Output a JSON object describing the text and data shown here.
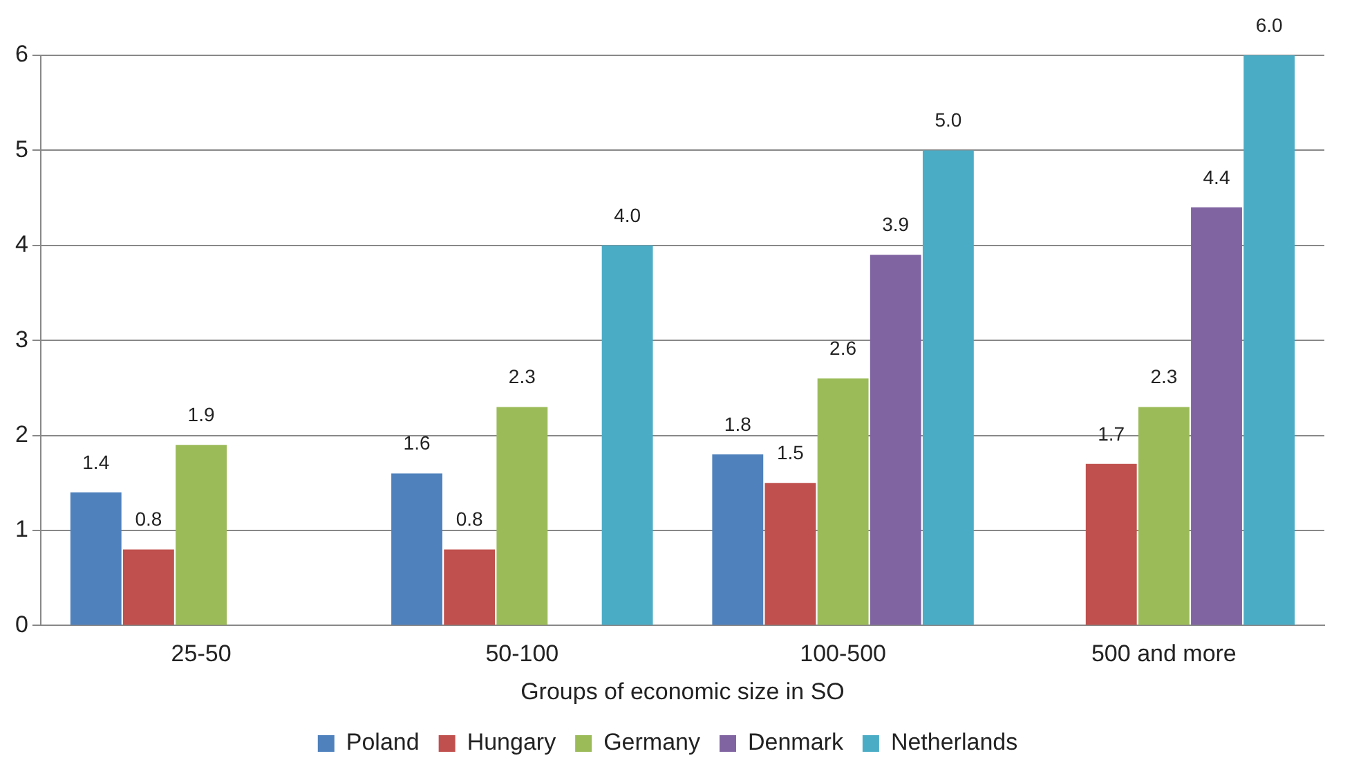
{
  "chart_data": {
    "type": "bar",
    "xlabel": "Groups of economic size in SO",
    "categories": [
      "25-50",
      "50-100",
      "100-500",
      "500 and more"
    ],
    "series": [
      {
        "name": "Poland",
        "color": "#4f81bd",
        "values": [
          1.4,
          1.6,
          1.8,
          null
        ],
        "value_labels": [
          "1.4",
          "1.6",
          "1.8",
          null
        ]
      },
      {
        "name": "Hungary",
        "color": "#c0504d",
        "values": [
          0.8,
          0.8,
          1.5,
          1.7
        ],
        "value_labels": [
          "0.8",
          "0.8",
          "1.5",
          "1.7"
        ]
      },
      {
        "name": "Germany",
        "color": "#9bbb59",
        "values": [
          1.9,
          2.3,
          2.6,
          2.3
        ],
        "value_labels": [
          "1.9",
          "2.3",
          "2.6",
          "2.3"
        ]
      },
      {
        "name": "Denmark",
        "color": "#8064a2",
        "values": [
          null,
          null,
          3.9,
          4.4
        ],
        "value_labels": [
          null,
          null,
          "3.9",
          "4.4"
        ]
      },
      {
        "name": "Netherlands",
        "color": "#4bacc6",
        "values": [
          null,
          4.0,
          5.0,
          6.0
        ],
        "value_labels": [
          null,
          "4.0",
          "5.0",
          "6.0"
        ]
      }
    ],
    "ylim": [
      0,
      6
    ],
    "yticks": [
      0,
      1,
      2,
      3,
      4,
      5,
      6
    ],
    "grid": "y",
    "legend": "bottom"
  }
}
